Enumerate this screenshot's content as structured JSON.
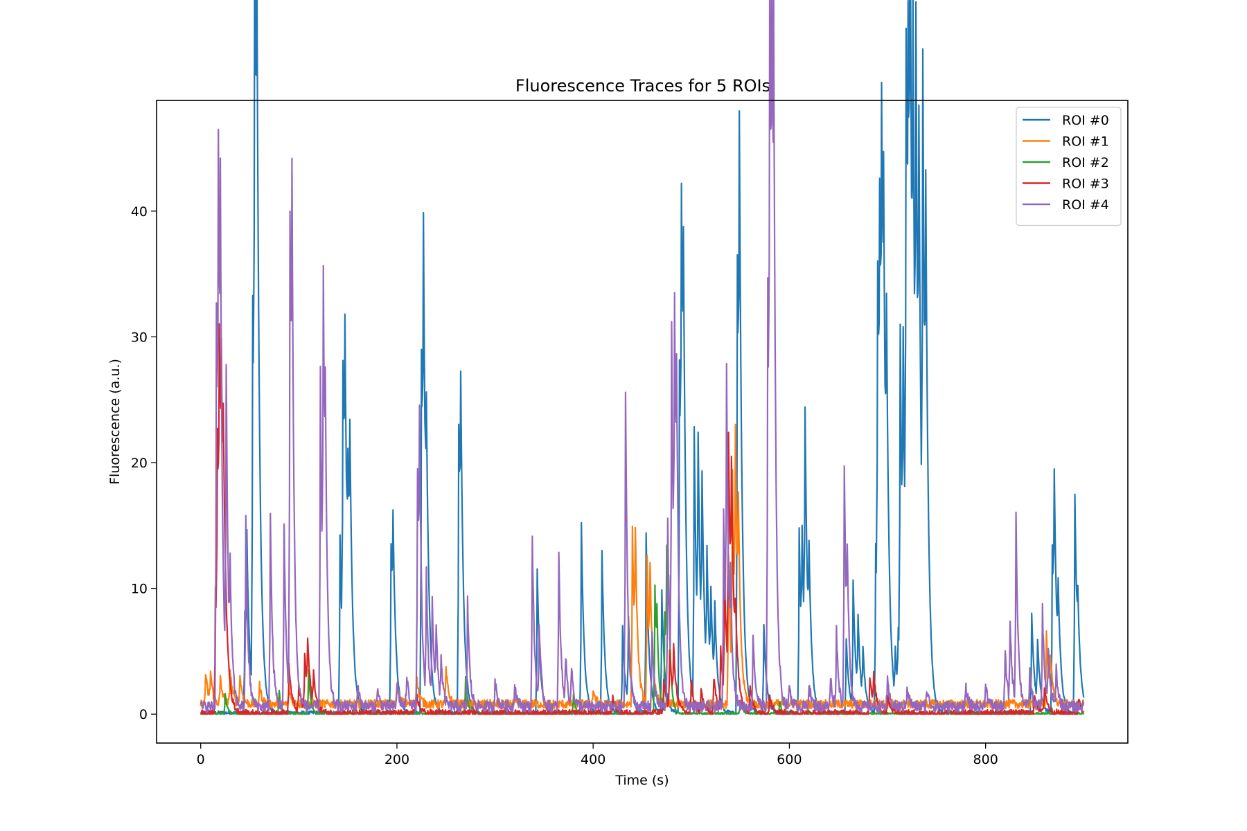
{
  "chart_data": {
    "type": "line",
    "title": "Fluorescence Traces for 5 ROIs",
    "xlabel": "Time (s)",
    "ylabel": "Fluorescence (a.u.)",
    "xlim": [
      -45,
      945
    ],
    "ylim": [
      -2.3,
      48.8
    ],
    "xticks": [
      0,
      200,
      400,
      600,
      800
    ],
    "yticks": [
      0,
      10,
      20,
      30,
      40
    ],
    "grid": false,
    "legend_position": "top-right",
    "series": [
      {
        "name": "ROI #0",
        "color": "#1f77b4",
        "peaks": [
          [
            45,
            8
          ],
          [
            47,
            10.5
          ],
          [
            53,
            31.5
          ],
          [
            55,
            46.5
          ],
          [
            57,
            35
          ],
          [
            142,
            14.2
          ],
          [
            145,
            23.3
          ],
          [
            147,
            18
          ],
          [
            150,
            10
          ],
          [
            152,
            13.1
          ],
          [
            194,
            13.6
          ],
          [
            196,
            9.5
          ],
          [
            225,
            29
          ],
          [
            227,
            25.5
          ],
          [
            230,
            12
          ],
          [
            263,
            23
          ],
          [
            265,
            16
          ],
          [
            343,
            11.3
          ],
          [
            388,
            15.1
          ],
          [
            409,
            12.9
          ],
          [
            430,
            6.8
          ],
          [
            436,
            7
          ],
          [
            454,
            14.3
          ],
          [
            470,
            9.6
          ],
          [
            488,
            28.2
          ],
          [
            490,
            28.3
          ],
          [
            492,
            18
          ],
          [
            503,
            21.9
          ],
          [
            507,
            17
          ],
          [
            511,
            14
          ],
          [
            516,
            10
          ],
          [
            520,
            7
          ],
          [
            524,
            6.5
          ],
          [
            547,
            36.3
          ],
          [
            549,
            30
          ],
          [
            574,
            7
          ],
          [
            610,
            14.6
          ],
          [
            613,
            10
          ],
          [
            616,
            19.1
          ],
          [
            620,
            8
          ],
          [
            658,
            6
          ],
          [
            665,
            10.1
          ],
          [
            670,
            6
          ],
          [
            675,
            4
          ],
          [
            688,
            13.3
          ],
          [
            690,
            29.3
          ],
          [
            692,
            25
          ],
          [
            694,
            29.4
          ],
          [
            696,
            20
          ],
          [
            699,
            18
          ],
          [
            708,
            4
          ],
          [
            711,
            5
          ],
          [
            713,
            27.7
          ],
          [
            716,
            20
          ],
          [
            719,
            43.8
          ],
          [
            721,
            30
          ],
          [
            723,
            42.3
          ],
          [
            726,
            33
          ],
          [
            729,
            37
          ],
          [
            732,
            29
          ],
          [
            736,
            41.3
          ],
          [
            739,
            25
          ],
          [
            847,
            8
          ],
          [
            853,
            5
          ],
          [
            868,
            13.2
          ],
          [
            870,
            13
          ],
          [
            874,
            6
          ],
          [
            891,
            17.5
          ],
          [
            894,
            4
          ]
        ],
        "baseline": 0.1,
        "noise": 0.15,
        "decay": 2.8
      },
      {
        "name": "ROI #1",
        "color": "#ff7f0e",
        "peaks": [
          [
            5,
            2.5
          ],
          [
            10,
            2.3
          ],
          [
            20,
            2
          ],
          [
            30,
            2.7
          ],
          [
            40,
            2.3
          ],
          [
            60,
            1.5
          ],
          [
            90,
            1.2
          ],
          [
            200,
            1.5
          ],
          [
            220,
            2.3
          ],
          [
            250,
            2.8
          ],
          [
            400,
            1.2
          ],
          [
            440,
            14.3
          ],
          [
            443,
            10
          ],
          [
            455,
            11.5
          ],
          [
            458,
            8
          ],
          [
            538,
            12
          ],
          [
            542,
            16
          ],
          [
            545,
            16.7
          ],
          [
            548,
            10
          ],
          [
            862,
            5.7
          ],
          [
            866,
            3
          ]
        ],
        "baseline": 0.8,
        "noise": 0.35,
        "decay": 2.5
      },
      {
        "name": "ROI #2",
        "color": "#2ca02c",
        "peaks": [
          [
            25,
            1.5
          ],
          [
            80,
            1.8
          ],
          [
            110,
            3.5
          ],
          [
            270,
            3
          ],
          [
            380,
            1.5
          ],
          [
            463,
            10.2
          ],
          [
            465,
            5
          ],
          [
            473,
            8
          ],
          [
            475,
            10.4
          ],
          [
            477,
            6
          ],
          [
            550,
            1
          ],
          [
            590,
            1
          ]
        ],
        "baseline": 0.05,
        "noise": 0.08,
        "decay": 2.0
      },
      {
        "name": "ROI #3",
        "color": "#d62728",
        "peaks": [
          [
            15,
            10
          ],
          [
            17,
            17.5
          ],
          [
            19,
            19.5
          ],
          [
            21,
            14
          ],
          [
            23,
            9
          ],
          [
            90,
            3.8
          ],
          [
            100,
            2
          ],
          [
            106,
            4.5
          ],
          [
            109,
            4.2
          ],
          [
            115,
            2.5
          ],
          [
            220,
            1.5
          ],
          [
            420,
            1.2
          ],
          [
            472,
            2.8
          ],
          [
            478,
            4.5
          ],
          [
            482,
            4
          ],
          [
            500,
            2.5
          ],
          [
            510,
            1.8
          ],
          [
            523,
            2.8
          ],
          [
            530,
            5
          ],
          [
            534,
            9.5
          ],
          [
            538,
            19.3
          ],
          [
            541,
            12
          ],
          [
            545,
            4
          ],
          [
            560,
            2
          ],
          [
            580,
            1.5
          ],
          [
            682,
            3
          ],
          [
            686,
            2.3
          ],
          [
            700,
            1.5
          ],
          [
            850,
            1.5
          ],
          [
            860,
            2.1
          ],
          [
            895,
            1.2
          ]
        ],
        "baseline": 0.1,
        "noise": 0.25,
        "decay": 3.0
      },
      {
        "name": "ROI #4",
        "color": "#9467bd",
        "peaks": [
          [
            16,
            32
          ],
          [
            18,
            32.7
          ],
          [
            20,
            25
          ],
          [
            26,
            24.3
          ],
          [
            30,
            7.4
          ],
          [
            46,
            14.9
          ],
          [
            71,
            15.2
          ],
          [
            85,
            14.3
          ],
          [
            91,
            38.5
          ],
          [
            93,
            28
          ],
          [
            122,
            27.2
          ],
          [
            125,
            28
          ],
          [
            127,
            12.5
          ],
          [
            160,
            1.8
          ],
          [
            180,
            1.5
          ],
          [
            200,
            2
          ],
          [
            210,
            2.6
          ],
          [
            221,
            18.9
          ],
          [
            223,
            16
          ],
          [
            230,
            9.8
          ],
          [
            236,
            8.3
          ],
          [
            240,
            5
          ],
          [
            245,
            3.5
          ],
          [
            272,
            8.6
          ],
          [
            300,
            2.2
          ],
          [
            320,
            2
          ],
          [
            338,
            13.8
          ],
          [
            345,
            6
          ],
          [
            365,
            12.3
          ],
          [
            372,
            3.7
          ],
          [
            378,
            3
          ],
          [
            433,
            25.1
          ],
          [
            460,
            6
          ],
          [
            476,
            15
          ],
          [
            480,
            28
          ],
          [
            483,
            25.2
          ],
          [
            485,
            15
          ],
          [
            533,
            16
          ],
          [
            536,
            23
          ],
          [
            540,
            7
          ],
          [
            563,
            6
          ],
          [
            578,
            34
          ],
          [
            580,
            45.4
          ],
          [
            582,
            41.2
          ],
          [
            584,
            30
          ],
          [
            600,
            1.8
          ],
          [
            620,
            2
          ],
          [
            642,
            2.4
          ],
          [
            648,
            6
          ],
          [
            656,
            19.4
          ],
          [
            659,
            8
          ],
          [
            700,
            2
          ],
          [
            720,
            1.8
          ],
          [
            740,
            1.5
          ],
          [
            780,
            1.5
          ],
          [
            800,
            2
          ],
          [
            820,
            4.5
          ],
          [
            825,
            6.6
          ],
          [
            831,
            15
          ],
          [
            845,
            3
          ],
          [
            858,
            7.8
          ],
          [
            864,
            4
          ],
          [
            872,
            3
          ]
        ],
        "baseline": 0.6,
        "noise": 0.45,
        "decay": 2.2
      }
    ]
  }
}
